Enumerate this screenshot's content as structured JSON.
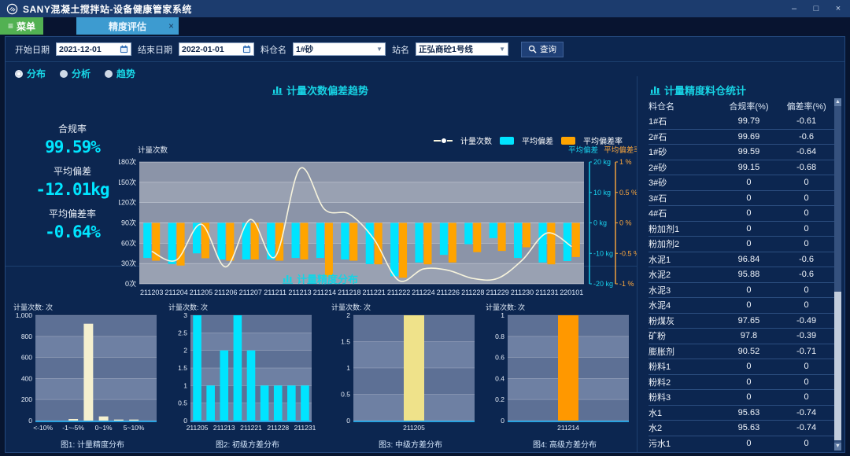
{
  "window": {
    "title": "SANY混凝土搅拌站-设备健康管家系统",
    "controls": {
      "minimize": "–",
      "maximize": "□",
      "close": "×"
    }
  },
  "tabbar": {
    "menu_label": "菜单",
    "tab": {
      "label": "精度评估",
      "close": "×"
    }
  },
  "filters": {
    "start_date": {
      "label": "开始日期",
      "value": "2021-12-01"
    },
    "end_date": {
      "label": "结束日期",
      "value": "2022-01-01"
    },
    "bin": {
      "label": "料仓名",
      "value": "1#砂"
    },
    "station": {
      "label": "站名",
      "value": "正弘商砼1号线"
    },
    "search_label": "查询"
  },
  "view_modes": [
    {
      "label": "分布",
      "selected": true
    },
    {
      "label": "分析",
      "selected": false
    },
    {
      "label": "趋势",
      "selected": false
    }
  ],
  "stats": [
    {
      "label": "合规率",
      "value": "99.59%"
    },
    {
      "label": "平均偏差",
      "value": "-12.01kg"
    },
    {
      "label": "平均偏差率",
      "value": "-0.64%"
    }
  ],
  "sections": {
    "trend_title": "计量次数偏差趋势",
    "distribution_title": "计量精度分布",
    "table_title": "计量精度料仓统计"
  },
  "colors": {
    "cyan": "#00e4ff",
    "orange": "#ffa400",
    "line": "#f7f4dd",
    "band_dark_main": "#8b94a8",
    "band_light_main": "#99a1b2",
    "band_dark_mini": "#5d7095",
    "band_light_mini": "#6e80a3",
    "baseline": "#2aa2e0"
  },
  "chart_data": [
    {
      "type": "bar+line",
      "title": "计量次数偏差趋势",
      "categories": [
        "211203",
        "211204",
        "211205",
        "211206",
        "211207",
        "211211",
        "211213",
        "211214",
        "211218",
        "211221",
        "211222",
        "211224",
        "211226",
        "211228",
        "211229",
        "211230",
        "211231",
        "220101"
      ],
      "series": [
        {
          "name": "计量次数",
          "type": "line",
          "axis": "count",
          "color": "#f7f4dd",
          "values": [
            48,
            35,
            88,
            25,
            95,
            40,
            170,
            110,
            103,
            66,
            5,
            22,
            20,
            8,
            8,
            35,
            75,
            55
          ]
        },
        {
          "name": "平均偏差",
          "type": "bar",
          "axis": "kg",
          "color": "#00e4ff",
          "values": [
            -11.5,
            -13.5,
            -10,
            -12,
            -12,
            -12,
            -11.5,
            -11.5,
            -12,
            -13.5,
            -17.5,
            -13,
            -10.5,
            -7,
            -5,
            -11.5,
            -13,
            -12.5
          ]
        },
        {
          "name": "平均偏差率",
          "type": "bar",
          "axis": "pct",
          "color": "#ffa400",
          "values": [
            -0.62,
            -0.7,
            -0.58,
            -0.62,
            -0.6,
            -0.62,
            -0.6,
            -0.88,
            -0.62,
            -0.68,
            -0.9,
            -0.68,
            -0.65,
            -0.48,
            -0.46,
            -0.4,
            -0.68,
            -0.56
          ]
        }
      ],
      "axes": {
        "count": {
          "label": "计量次数",
          "min": 0,
          "max": 180,
          "ticks": [
            "0次",
            "30次",
            "60次",
            "90次",
            "120次",
            "150次",
            "180次"
          ]
        },
        "kg": {
          "label": "平均偏差",
          "min": -20,
          "max": 20,
          "color": "#19d3ee",
          "ticks": [
            "-20 kg",
            "-10 kg",
            "0 kg",
            "10 kg",
            "20 kg"
          ]
        },
        "pct": {
          "label": "平均偏差率",
          "min": -1,
          "max": 1,
          "color": "#ffa93d",
          "ticks": [
            "-1 %",
            "-0.5 %",
            "0 %",
            "0.5 %",
            "1 %"
          ]
        }
      },
      "legend_position": "top-right",
      "grid": true
    },
    {
      "type": "bar",
      "ylabel": "计量次数: 次",
      "caption": "图1: 计量精度分布",
      "categories": [
        "<-10%",
        "",
        "-1~-5%",
        "",
        "0~1%",
        "",
        "5~10%",
        ""
      ],
      "values": [
        0,
        0,
        15,
        920,
        40,
        10,
        10,
        0
      ],
      "color": "#f5f0cf",
      "ymax": 1000,
      "yticks": [
        "0",
        "200",
        "400",
        "600",
        "800",
        "1,000"
      ]
    },
    {
      "type": "bar",
      "ylabel": "计量次数: 次",
      "caption": "图2: 初级方差分布",
      "categories": [
        "211205",
        "",
        "211213",
        "",
        "211221",
        "",
        "211228",
        "",
        "211231"
      ],
      "values": [
        3,
        1,
        2,
        3,
        2,
        1,
        1,
        1,
        1
      ],
      "color": "#00e4ff",
      "ymax": 3,
      "yticks": [
        "0",
        "0.5",
        "1",
        "1.5",
        "2",
        "2.5",
        "3"
      ]
    },
    {
      "type": "bar",
      "ylabel": "计量次数: 次",
      "caption": "图3: 中级方差分布",
      "categories": [
        "211205"
      ],
      "values": [
        2
      ],
      "color": "#efe28a",
      "ymax": 2,
      "yticks": [
        "0",
        "0.5",
        "1",
        "1.5",
        "2"
      ]
    },
    {
      "type": "bar",
      "ylabel": "计量次数: 次",
      "caption": "图4: 高级方差分布",
      "categories": [
        "211214"
      ],
      "values": [
        1
      ],
      "color": "#ff9800",
      "ymax": 1,
      "yticks": [
        "0",
        "0.2",
        "0.4",
        "0.6",
        "0.8",
        "1"
      ]
    }
  ],
  "table": {
    "headers": [
      "料仓名",
      "合规率(%)",
      "偏差率(%)"
    ],
    "rows": [
      [
        "1#石",
        "99.79",
        "-0.61"
      ],
      [
        "2#石",
        "99.69",
        "-0.6"
      ],
      [
        "1#砂",
        "99.59",
        "-0.64"
      ],
      [
        "2#砂",
        "99.15",
        "-0.68"
      ],
      [
        "3#砂",
        "0",
        "0"
      ],
      [
        "3#石",
        "0",
        "0"
      ],
      [
        "4#石",
        "0",
        "0"
      ],
      [
        "粉加剂1",
        "0",
        "0"
      ],
      [
        "粉加剂2",
        "0",
        "0"
      ],
      [
        "水泥1",
        "96.84",
        "-0.6"
      ],
      [
        "水泥2",
        "95.88",
        "-0.6"
      ],
      [
        "水泥3",
        "0",
        "0"
      ],
      [
        "水泥4",
        "0",
        "0"
      ],
      [
        "粉煤灰",
        "97.65",
        "-0.49"
      ],
      [
        "矿粉",
        "97.8",
        "-0.39"
      ],
      [
        "膨胀剂",
        "90.52",
        "-0.71"
      ],
      [
        "粉料1",
        "0",
        "0"
      ],
      [
        "粉料2",
        "0",
        "0"
      ],
      [
        "粉料3",
        "0",
        "0"
      ],
      [
        "水1",
        "95.63",
        "-0.74"
      ],
      [
        "水2",
        "95.63",
        "-0.74"
      ],
      [
        "污水1",
        "0",
        "0"
      ]
    ]
  }
}
